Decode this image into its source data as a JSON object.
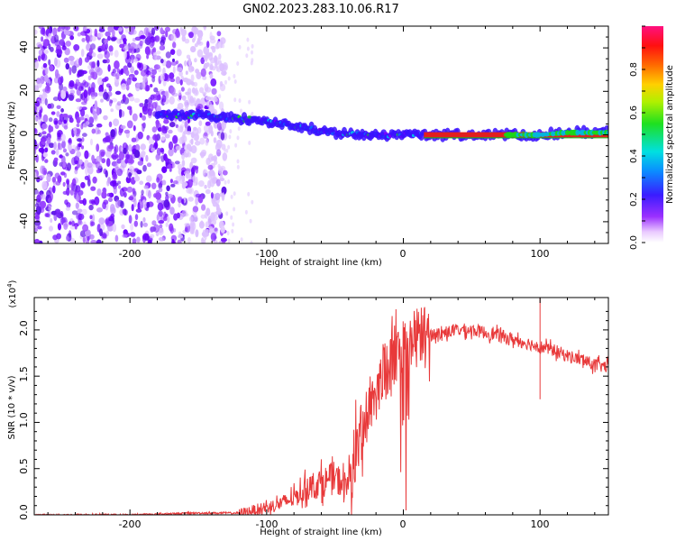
{
  "title": "GN02.2023.283.10.06.R17",
  "colors": {
    "snr_line": "#e8393a",
    "spec_band": "#e21f1f",
    "axis": "#000000"
  },
  "chart_data": [
    {
      "type": "heatmap",
      "xlabel": "Height of straight line (km)",
      "ylabel": "Frequency (Hz)",
      "xlim": [
        -270,
        150
      ],
      "ylim": [
        -50,
        50
      ],
      "xticks": [
        "-200",
        "-100",
        "0",
        "100"
      ],
      "yticks": [
        "-40",
        "-20",
        "0",
        "20",
        "40"
      ],
      "colorbar": {
        "label": "Normalized spectral amplitude",
        "range": [
          0.0,
          1.0
        ],
        "ticks": [
          "0.0",
          "0.2",
          "0.4",
          "0.6",
          "0.8"
        ],
        "colormap": "white-violet-purple-blue-cyan-green-yellow-orange-red-pink"
      },
      "ridge": {
        "x": [
          -180,
          -160,
          -150,
          -130,
          -110,
          -100,
          -90,
          -80,
          -70,
          -60,
          -50,
          -40,
          -30,
          -20,
          -10,
          0,
          15,
          40,
          60,
          80,
          100,
          120,
          150
        ],
        "freq_hz": [
          10,
          9,
          9,
          8,
          7,
          6,
          5,
          4,
          3,
          2,
          1,
          1,
          0,
          0,
          0,
          0,
          0,
          0,
          0,
          0,
          0,
          1,
          1
        ]
      },
      "noise_region_x": [
        -270,
        -130
      ],
      "strong_band_x": [
        15,
        150
      ]
    },
    {
      "type": "line",
      "xlabel": "Height of straight line (km)",
      "ylabel": "SNR (10 * v/v)",
      "yscale_label": "(x10",
      "yscale_exp": "4",
      "xlim": [
        -270,
        150
      ],
      "ylim": [
        0,
        2.35
      ],
      "xticks": [
        "-200",
        "-100",
        "0",
        "100"
      ],
      "yticks": [
        "0.0",
        "0.5",
        "1.0",
        "1.5",
        "2.0"
      ],
      "series": [
        {
          "x": [
            -270,
            -200,
            -150,
            -120,
            -110,
            -100,
            -90,
            -80,
            -70,
            -60,
            -50,
            -45,
            -40,
            -35,
            -30,
            -25,
            -20,
            -15,
            -10,
            0,
            10,
            20,
            30,
            40,
            50,
            60,
            70,
            80,
            90,
            100,
            110,
            120,
            130,
            140,
            150
          ],
          "values": [
            0.0,
            0.0,
            0.02,
            0.02,
            0.05,
            0.08,
            0.12,
            0.18,
            0.3,
            0.35,
            0.4,
            0.35,
            0.3,
            0.7,
            0.9,
            1.2,
            1.35,
            1.5,
            1.6,
            1.8,
            1.9,
            1.95,
            1.97,
            2.0,
            2.0,
            1.97,
            1.94,
            1.9,
            1.86,
            1.82,
            1.78,
            1.72,
            1.68,
            1.62,
            1.6
          ]
        }
      ]
    }
  ]
}
